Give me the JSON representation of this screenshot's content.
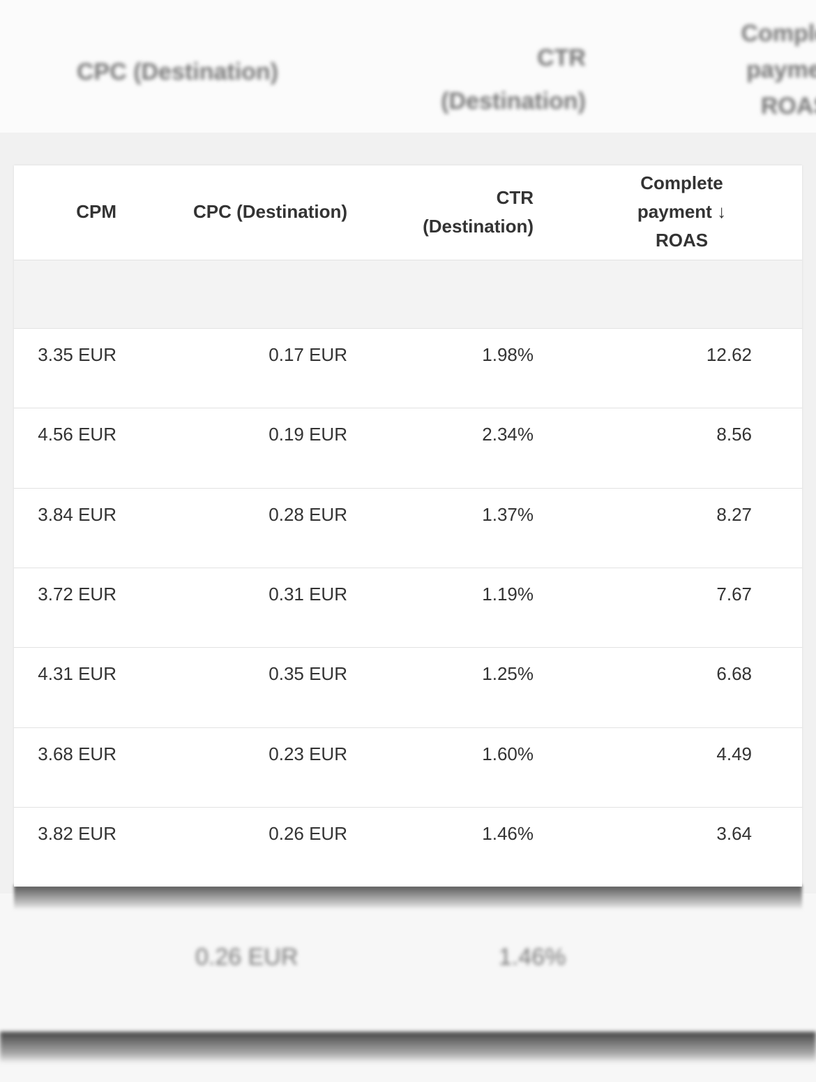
{
  "background": {
    "headers": [
      "CPC (Destination)",
      "CTR (Destination)",
      "Complete payment ROAS"
    ],
    "footer": [
      "0.26 EUR",
      "1.46%"
    ]
  },
  "table": {
    "columns": [
      "CPM",
      "CPC (Destination)",
      "CTR (Destination)",
      "Complete payment ↓ ROAS"
    ],
    "rows": [
      [
        "3.35 EUR",
        "0.17 EUR",
        "1.98%",
        "12.62"
      ],
      [
        "4.56 EUR",
        "0.19 EUR",
        "2.34%",
        "8.56"
      ],
      [
        "3.84 EUR",
        "0.28 EUR",
        "1.37%",
        "8.27"
      ],
      [
        "3.72 EUR",
        "0.31 EUR",
        "1.19%",
        "7.67"
      ],
      [
        "4.31 EUR",
        "0.35 EUR",
        "1.25%",
        "6.68"
      ],
      [
        "3.68 EUR",
        "0.23 EUR",
        "1.60%",
        "4.49"
      ],
      [
        "3.82 EUR",
        "0.26 EUR",
        "1.46%",
        "3.64"
      ]
    ]
  }
}
